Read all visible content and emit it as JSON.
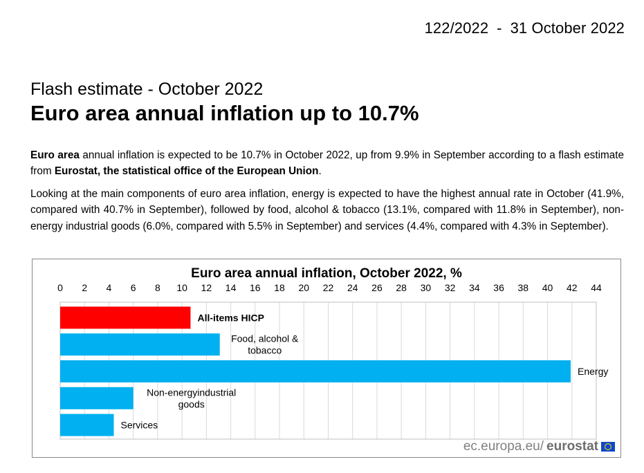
{
  "header": {
    "release_number": "122/2022",
    "separator": "-",
    "release_date": "31 October 2022"
  },
  "subtitle": "Flash estimate - October 2022",
  "title": "Euro area annual inflation up to 10.7%",
  "paragraph1": {
    "lead": "Euro area",
    "text1": " annual inflation is expected to be 10.7% in October 2022, up from 9.9% in September according to a flash estimate from ",
    "org": "Eurostat, the statistical office of the European Union",
    "end": "."
  },
  "paragraph2": "Looking at the main components of euro area inflation, energy is expected to have the highest annual rate in October (41.9%, compared with 40.7% in September), followed by food, alcohol & tobacco (13.1%, compared with 11.8% in September), non-energy industrial goods (6.0%, compared with 5.5% in September) and services (4.4%, compared with 4.3% in September).",
  "chart_data": {
    "type": "bar",
    "orientation": "horizontal",
    "title": "Euro area annual inflation, October 2022, %",
    "xlim": [
      0,
      44
    ],
    "ticks": [
      0,
      2,
      4,
      6,
      8,
      10,
      12,
      14,
      16,
      18,
      20,
      22,
      24,
      26,
      28,
      30,
      32,
      34,
      36,
      38,
      40,
      42,
      44
    ],
    "categories": [
      {
        "label": [
          "All-items HICP"
        ],
        "bold": true
      },
      {
        "label": [
          "Food, alcohol &",
          "tobacco"
        ],
        "bold": false
      },
      {
        "label": [
          "Energy"
        ],
        "bold": false
      },
      {
        "label": [
          "Non-energyindustrial",
          "goods"
        ],
        "bold": false
      },
      {
        "label": [
          "Services"
        ],
        "bold": false
      }
    ],
    "values": [
      10.7,
      13.1,
      41.9,
      6.0,
      4.4
    ],
    "colors": [
      "#ff0000",
      "#00b0f0",
      "#00b0f0",
      "#00b0f0",
      "#00b0f0"
    ],
    "grid": true,
    "legend": "none"
  },
  "footer": {
    "site": "ec.europa.eu/",
    "brand": "eurostat"
  },
  "colors": {
    "highlight": "#ff0000",
    "bar": "#00b0f0",
    "grid": "#d9d9d9"
  }
}
